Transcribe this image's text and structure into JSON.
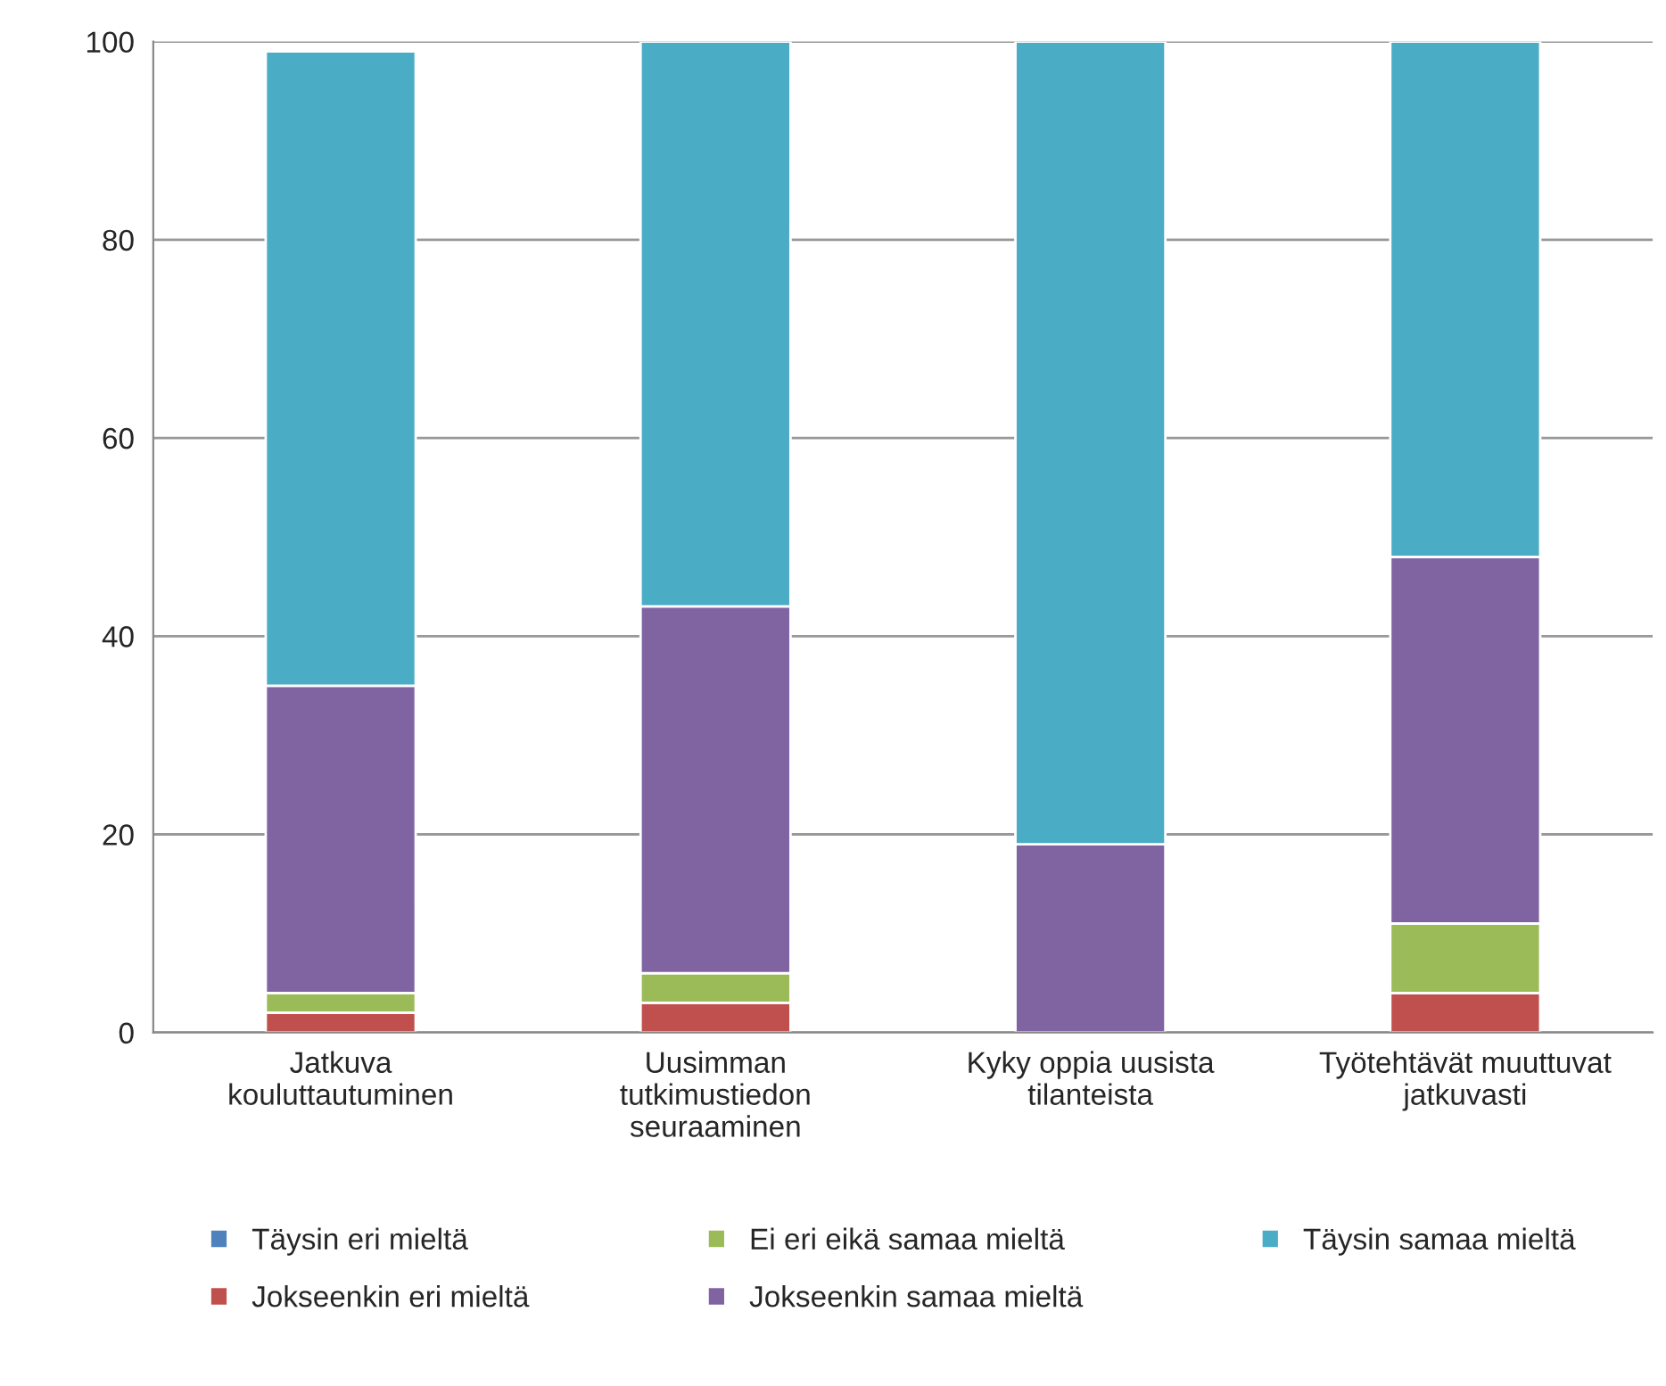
{
  "chart_data": {
    "type": "bar",
    "stacked": true,
    "categories": [
      "Jatkuva\nkouluttautuminen",
      "Uusimman\ntutkimustiedon\nseuraaminen",
      "Kyky oppia uusista\ntilanteista",
      "Työtehtävät muuttuvat\njatkuvasti"
    ],
    "series": [
      {
        "name": "Täysin eri mieltä",
        "color": "#4f81bd",
        "values": [
          0,
          0,
          0,
          0
        ]
      },
      {
        "name": "Jokseenkin eri mieltä",
        "color": "#c0504d",
        "values": [
          2,
          3,
          0,
          4
        ]
      },
      {
        "name": "Ei eri eikä samaa mieltä",
        "color": "#9bbb59",
        "values": [
          2,
          3,
          0,
          7
        ]
      },
      {
        "name": "Jokseenkin samaa mieltä",
        "color": "#8064a2",
        "values": [
          31,
          37,
          19,
          37
        ]
      },
      {
        "name": "Täysin samaa mieltä",
        "color": "#4bacc6",
        "values": [
          64,
          57,
          81,
          52
        ]
      }
    ],
    "ylim": [
      0,
      100
    ],
    "yticks": [
      0,
      20,
      40,
      60,
      80,
      100
    ],
    "grid": "y",
    "legend": "bottom"
  }
}
